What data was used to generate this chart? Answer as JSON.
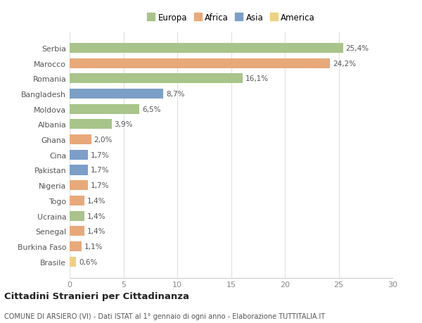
{
  "countries": [
    "Serbia",
    "Marocco",
    "Romania",
    "Bangladesh",
    "Moldova",
    "Albania",
    "Ghana",
    "Cina",
    "Pakistan",
    "Nigeria",
    "Togo",
    "Ucraina",
    "Senegal",
    "Burkina Faso",
    "Brasile"
  ],
  "values": [
    25.4,
    24.2,
    16.1,
    8.7,
    6.5,
    3.9,
    2.0,
    1.7,
    1.7,
    1.7,
    1.4,
    1.4,
    1.4,
    1.1,
    0.6
  ],
  "labels": [
    "25,4%",
    "24,2%",
    "16,1%",
    "8,7%",
    "6,5%",
    "3,9%",
    "2,0%",
    "1,7%",
    "1,7%",
    "1,7%",
    "1,4%",
    "1,4%",
    "1,4%",
    "1,1%",
    "0,6%"
  ],
  "continents": [
    "Europa",
    "Africa",
    "Europa",
    "Asia",
    "Europa",
    "Europa",
    "Africa",
    "Asia",
    "Asia",
    "Africa",
    "Africa",
    "Europa",
    "Africa",
    "Africa",
    "America"
  ],
  "colors": {
    "Europa": "#a8c48a",
    "Africa": "#e8a97a",
    "Asia": "#7b9fc7",
    "America": "#f0d080"
  },
  "legend_order": [
    "Europa",
    "Africa",
    "Asia",
    "America"
  ],
  "title": "Cittadini Stranieri per Cittadinanza",
  "subtitle": "COMUNE DI ARSIERO (VI) - Dati ISTAT al 1° gennaio di ogni anno - Elaborazione TUTTITALIA.IT",
  "xlim": [
    0,
    30
  ],
  "xticks": [
    0,
    5,
    10,
    15,
    20,
    25,
    30
  ],
  "background_color": "#ffffff",
  "bar_background": "#ffffff",
  "grid_color": "#e0e0e0"
}
